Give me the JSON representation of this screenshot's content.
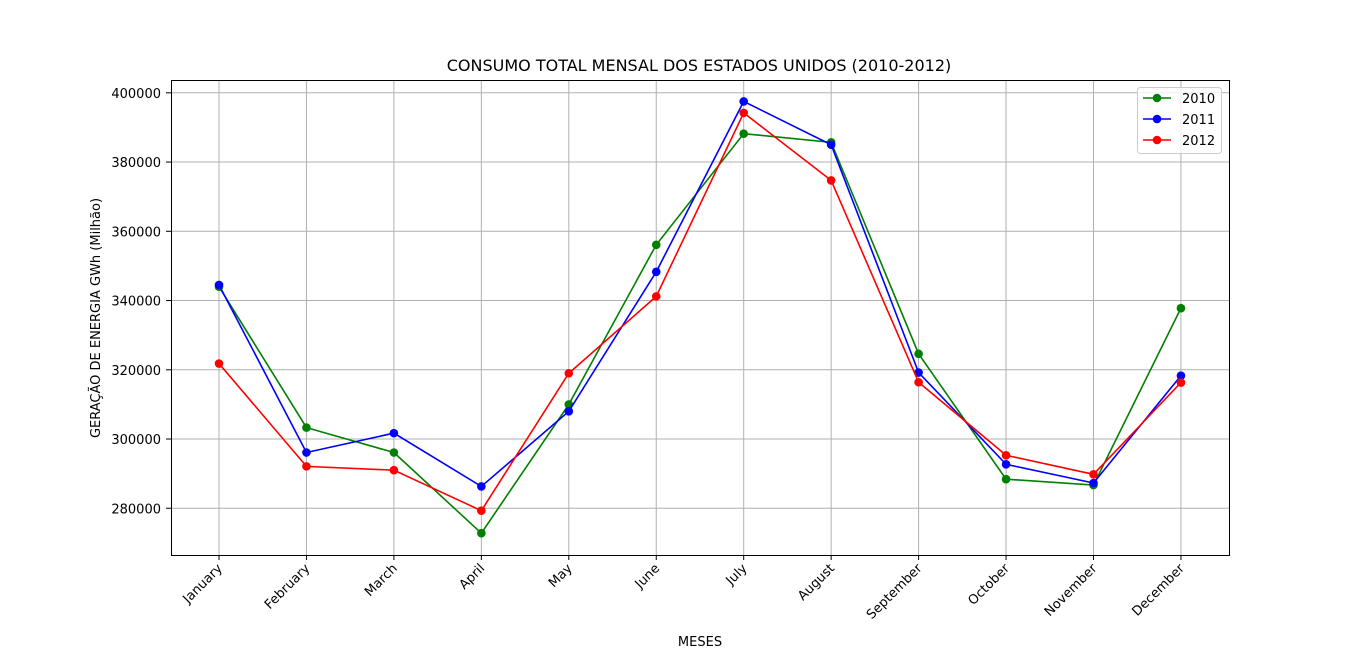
{
  "chart_data": {
    "type": "line",
    "title": "CONSUMO TOTAL MENSAL DOS ESTADOS UNIDOS (2010-2012)",
    "xlabel": "MESES",
    "ylabel": "GERAÇÃO DE ENERGIA GWh (Milhão)",
    "categories": [
      "January",
      "February",
      "March",
      "April",
      "May",
      "June",
      "July",
      "August",
      "September",
      "October",
      "November",
      "December"
    ],
    "ylim": [
      266500,
      403700
    ],
    "yticks": [
      280000,
      300000,
      320000,
      340000,
      360000,
      380000,
      400000
    ],
    "grid": true,
    "legend_position": "top-right",
    "series": [
      {
        "name": "2010",
        "color": "#008000",
        "values": [
          344000,
          303300,
          296100,
          272800,
          310000,
          356100,
          388200,
          385700,
          324600,
          288400,
          286700,
          337800
        ]
      },
      {
        "name": "2011",
        "color": "#0000ff",
        "values": [
          344500,
          296100,
          301700,
          286300,
          308000,
          348300,
          397500,
          385000,
          319200,
          292700,
          287300,
          318300
        ]
      },
      {
        "name": "2012",
        "color": "#ff0000",
        "values": [
          321800,
          292100,
          291000,
          279300,
          319000,
          341200,
          394200,
          374700,
          316400,
          295300,
          289800,
          316300
        ]
      }
    ]
  }
}
